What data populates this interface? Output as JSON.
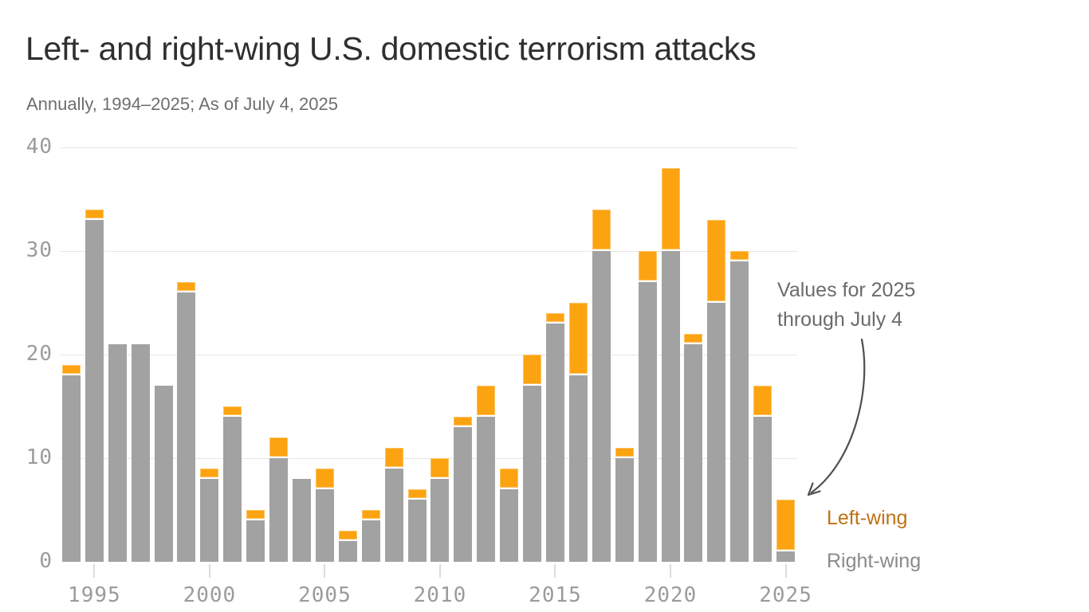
{
  "title": "Left- and right-wing U.S. domestic terrorism attacks",
  "subtitle": "Annually, 1994–2025; As of July 4, 2025",
  "annotation": {
    "line1": "Values for 2025",
    "line2": "through July 4"
  },
  "legend": {
    "left": "Left-wing",
    "right": "Right-wing"
  },
  "colors": {
    "left_wing_bar": "#FCA311",
    "right_wing_bar": "#A2A2A2",
    "left_legend_text": "#C07114",
    "right_legend_text": "#8B8B8B",
    "grid": "#E7E7E5",
    "axis_text": "#9B9B9B",
    "title_text": "#2F2F2F",
    "subtitle_text": "#6E6E6E",
    "annotation_text": "#6B6B6B",
    "arrow": "#4F4F4F",
    "background": "#FFFFFF"
  },
  "chart_data": {
    "type": "bar",
    "stacked": true,
    "title": "Left- and right-wing U.S. domestic terrorism attacks",
    "subtitle": "Annually, 1994–2025; As of July 4, 2025",
    "categories": [
      1994,
      1995,
      1996,
      1997,
      1998,
      1999,
      2000,
      2001,
      2002,
      2003,
      2004,
      2005,
      2006,
      2007,
      2008,
      2009,
      2010,
      2011,
      2012,
      2013,
      2014,
      2015,
      2016,
      2017,
      2018,
      2019,
      2020,
      2021,
      2022,
      2023,
      2024,
      2025
    ],
    "series": [
      {
        "name": "Right-wing",
        "color": "#A2A2A2",
        "values": [
          18,
          33,
          21,
          21,
          17,
          26,
          8,
          14,
          4,
          10,
          8,
          7,
          2,
          4,
          9,
          6,
          8,
          13,
          14,
          7,
          17,
          23,
          18,
          30,
          10,
          27,
          30,
          21,
          25,
          29,
          14,
          1
        ]
      },
      {
        "name": "Left-wing",
        "color": "#FCA311",
        "values": [
          1,
          1,
          0,
          0,
          0,
          1,
          1,
          1,
          1,
          2,
          0,
          2,
          1,
          1,
          2,
          1,
          2,
          1,
          3,
          2,
          3,
          1,
          7,
          4,
          1,
          3,
          8,
          1,
          8,
          1,
          3,
          5
        ]
      }
    ],
    "totals": [
      19,
      34,
      21,
      21,
      17,
      27,
      9,
      15,
      5,
      12,
      8,
      9,
      3,
      5,
      11,
      7,
      10,
      14,
      17,
      9,
      20,
      24,
      25,
      34,
      11,
      30,
      38,
      22,
      33,
      30,
      17,
      6
    ],
    "xlabel": "",
    "ylabel": "",
    "ylim": [
      0,
      40
    ],
    "yticks": [
      0,
      10,
      20,
      30,
      40
    ],
    "xticks": [
      1995,
      2000,
      2005,
      2010,
      2015,
      2020,
      2025
    ],
    "grid": true,
    "legend_position": "right",
    "annotation": "Values for 2025 through July 4"
  }
}
